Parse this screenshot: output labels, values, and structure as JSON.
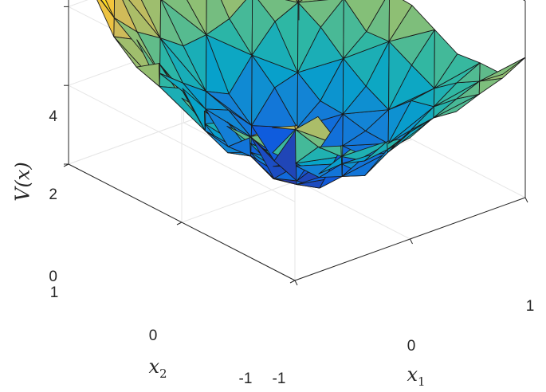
{
  "chart_data": {
    "type": "surface",
    "title": "",
    "xlabel": {
      "var": "x",
      "sub": "1"
    },
    "ylabel": {
      "var": "x",
      "sub": "2"
    },
    "zlabel": "V(x)",
    "xlim": [
      -1,
      1
    ],
    "ylim": [
      -1,
      1
    ],
    "zlim": [
      0,
      5
    ],
    "x_ticks": [
      "-1",
      "0",
      "1"
    ],
    "y_ticks": [
      "-1",
      "0",
      "1"
    ],
    "z_ticks": [
      "0",
      "2",
      "4"
    ],
    "grid": true,
    "box": true,
    "colormap": [
      "#352a87",
      "#0f5cdd",
      "#1481d6",
      "#06a4ca",
      "#2eb7a4",
      "#87bf77",
      "#d1bb59",
      "#fec832",
      "#f9fb0e"
    ],
    "surface_samples": {
      "x": [
        -1,
        -0.5,
        0,
        0.5,
        1
      ],
      "y": [
        -1,
        -0.5,
        0,
        0.5,
        1
      ],
      "z": [
        [
          4.2,
          3.0,
          2.6,
          3.1,
          3.3
        ],
        [
          3.1,
          1.4,
          0.6,
          1.6,
          2.8
        ],
        [
          3.4,
          1.1,
          0.0,
          1.3,
          3.2
        ],
        [
          3.6,
          2.0,
          1.1,
          2.5,
          3.5
        ],
        [
          5.2,
          3.6,
          3.4,
          3.9,
          5.0
        ]
      ]
    }
  }
}
